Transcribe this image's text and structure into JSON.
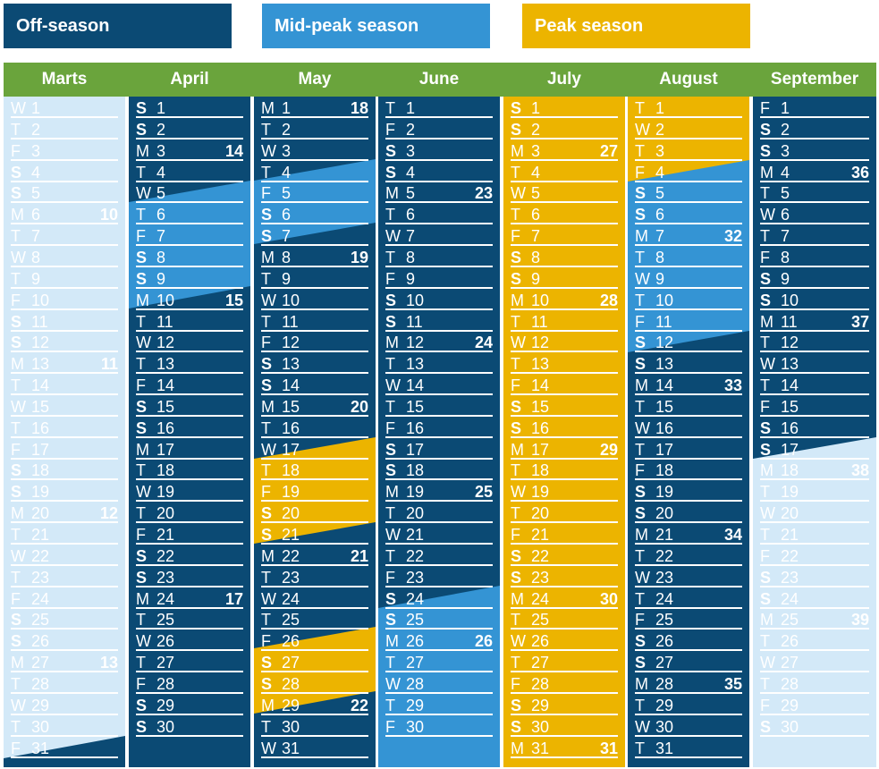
{
  "colors": {
    "off": "#0b4a74",
    "offLight": "#d3e9f8",
    "mid": "#3494d4",
    "peak": "#ecb400",
    "header": "#6aa43c",
    "text": "#ffffff"
  },
  "legend": {
    "off": "Off-season",
    "mid": "Mid-peak season",
    "peak": "Peak season"
  },
  "months": [
    {
      "name": "Marts",
      "days": [
        {
          "d": "W",
          "n": "1"
        },
        {
          "d": "T",
          "n": "2"
        },
        {
          "d": "F",
          "n": "3"
        },
        {
          "d": "S",
          "n": "4"
        },
        {
          "d": "S",
          "n": "5"
        },
        {
          "d": "M",
          "n": "6",
          "w": "10"
        },
        {
          "d": "T",
          "n": "7"
        },
        {
          "d": "W",
          "n": "8"
        },
        {
          "d": "T",
          "n": "9"
        },
        {
          "d": "F",
          "n": "10"
        },
        {
          "d": "S",
          "n": "11"
        },
        {
          "d": "S",
          "n": "12"
        },
        {
          "d": "M",
          "n": "13",
          "w": "11"
        },
        {
          "d": "T",
          "n": "14"
        },
        {
          "d": "W",
          "n": "15"
        },
        {
          "d": "T",
          "n": "16"
        },
        {
          "d": "F",
          "n": "17"
        },
        {
          "d": "S",
          "n": "18"
        },
        {
          "d": "S",
          "n": "19"
        },
        {
          "d": "M",
          "n": "20",
          "w": "12"
        },
        {
          "d": "T",
          "n": "21"
        },
        {
          "d": "W",
          "n": "22"
        },
        {
          "d": "T",
          "n": "23"
        },
        {
          "d": "F",
          "n": "24"
        },
        {
          "d": "S",
          "n": "25"
        },
        {
          "d": "S",
          "n": "26"
        },
        {
          "d": "M",
          "n": "27",
          "w": "13"
        },
        {
          "d": "T",
          "n": "28"
        },
        {
          "d": "W",
          "n": "29"
        },
        {
          "d": "T",
          "n": "30"
        },
        {
          "d": "F",
          "n": "31"
        }
      ]
    },
    {
      "name": "April",
      "days": [
        {
          "d": "S",
          "n": "1"
        },
        {
          "d": "S",
          "n": "2"
        },
        {
          "d": "M",
          "n": "3",
          "w": "14"
        },
        {
          "d": "T",
          "n": "4"
        },
        {
          "d": "W",
          "n": "5"
        },
        {
          "d": "T",
          "n": "6"
        },
        {
          "d": "F",
          "n": "7"
        },
        {
          "d": "S",
          "n": "8"
        },
        {
          "d": "S",
          "n": "9"
        },
        {
          "d": "M",
          "n": "10",
          "w": "15"
        },
        {
          "d": "T",
          "n": "11"
        },
        {
          "d": "W",
          "n": "12"
        },
        {
          "d": "T",
          "n": "13"
        },
        {
          "d": "F",
          "n": "14"
        },
        {
          "d": "S",
          "n": "15"
        },
        {
          "d": "S",
          "n": "16"
        },
        {
          "d": "M",
          "n": "17"
        },
        {
          "d": "T",
          "n": "18"
        },
        {
          "d": "W",
          "n": "19"
        },
        {
          "d": "T",
          "n": "20"
        },
        {
          "d": "F",
          "n": "21"
        },
        {
          "d": "S",
          "n": "22"
        },
        {
          "d": "S",
          "n": "23"
        },
        {
          "d": "M",
          "n": "24",
          "w": "17"
        },
        {
          "d": "T",
          "n": "25"
        },
        {
          "d": "W",
          "n": "26"
        },
        {
          "d": "T",
          "n": "27"
        },
        {
          "d": "F",
          "n": "28"
        },
        {
          "d": "S",
          "n": "29"
        },
        {
          "d": "S",
          "n": "30"
        }
      ]
    },
    {
      "name": "May",
      "days": [
        {
          "d": "M",
          "n": "1",
          "w": "18"
        },
        {
          "d": "T",
          "n": "2"
        },
        {
          "d": "W",
          "n": "3"
        },
        {
          "d": "T",
          "n": "4"
        },
        {
          "d": "F",
          "n": "5"
        },
        {
          "d": "S",
          "n": "6"
        },
        {
          "d": "S",
          "n": "7"
        },
        {
          "d": "M",
          "n": "8",
          "w": "19"
        },
        {
          "d": "T",
          "n": "9"
        },
        {
          "d": "W",
          "n": "10"
        },
        {
          "d": "T",
          "n": "11"
        },
        {
          "d": "F",
          "n": "12"
        },
        {
          "d": "S",
          "n": "13"
        },
        {
          "d": "S",
          "n": "14"
        },
        {
          "d": "M",
          "n": "15",
          "w": "20"
        },
        {
          "d": "T",
          "n": "16"
        },
        {
          "d": "W",
          "n": "17"
        },
        {
          "d": "T",
          "n": "18"
        },
        {
          "d": "F",
          "n": "19"
        },
        {
          "d": "S",
          "n": "20"
        },
        {
          "d": "S",
          "n": "21"
        },
        {
          "d": "M",
          "n": "22",
          "w": "21"
        },
        {
          "d": "T",
          "n": "23"
        },
        {
          "d": "W",
          "n": "24"
        },
        {
          "d": "T",
          "n": "25"
        },
        {
          "d": "F",
          "n": "26"
        },
        {
          "d": "S",
          "n": "27"
        },
        {
          "d": "S",
          "n": "28"
        },
        {
          "d": "M",
          "n": "29",
          "w": "22"
        },
        {
          "d": "T",
          "n": "30"
        },
        {
          "d": "W",
          "n": "31"
        }
      ]
    },
    {
      "name": "June",
      "days": [
        {
          "d": "T",
          "n": "1"
        },
        {
          "d": "F",
          "n": "2"
        },
        {
          "d": "S",
          "n": "3"
        },
        {
          "d": "S",
          "n": "4"
        },
        {
          "d": "M",
          "n": "5",
          "w": "23"
        },
        {
          "d": "T",
          "n": "6"
        },
        {
          "d": "W",
          "n": "7"
        },
        {
          "d": "T",
          "n": "8"
        },
        {
          "d": "F",
          "n": "9"
        },
        {
          "d": "S",
          "n": "10"
        },
        {
          "d": "S",
          "n": "11"
        },
        {
          "d": "M",
          "n": "12",
          "w": "24"
        },
        {
          "d": "T",
          "n": "13"
        },
        {
          "d": "W",
          "n": "14"
        },
        {
          "d": "T",
          "n": "15"
        },
        {
          "d": "F",
          "n": "16"
        },
        {
          "d": "S",
          "n": "17"
        },
        {
          "d": "S",
          "n": "18"
        },
        {
          "d": "M",
          "n": "19",
          "w": "25"
        },
        {
          "d": "T",
          "n": "20"
        },
        {
          "d": "W",
          "n": "21"
        },
        {
          "d": "T",
          "n": "22"
        },
        {
          "d": "F",
          "n": "23"
        },
        {
          "d": "S",
          "n": "24"
        },
        {
          "d": "S",
          "n": "25"
        },
        {
          "d": "M",
          "n": "26",
          "w": "26"
        },
        {
          "d": "T",
          "n": "27"
        },
        {
          "d": "W",
          "n": "28"
        },
        {
          "d": "T",
          "n": "29"
        },
        {
          "d": "F",
          "n": "30"
        }
      ]
    },
    {
      "name": "July",
      "days": [
        {
          "d": "S",
          "n": "1"
        },
        {
          "d": "S",
          "n": "2"
        },
        {
          "d": "M",
          "n": "3",
          "w": "27"
        },
        {
          "d": "T",
          "n": "4"
        },
        {
          "d": "W",
          "n": "5"
        },
        {
          "d": "T",
          "n": "6"
        },
        {
          "d": "F",
          "n": "7"
        },
        {
          "d": "S",
          "n": "8"
        },
        {
          "d": "S",
          "n": "9"
        },
        {
          "d": "M",
          "n": "10",
          "w": "28"
        },
        {
          "d": "T",
          "n": "11"
        },
        {
          "d": "W",
          "n": "12"
        },
        {
          "d": "T",
          "n": "13"
        },
        {
          "d": "F",
          "n": "14"
        },
        {
          "d": "S",
          "n": "15"
        },
        {
          "d": "S",
          "n": "16"
        },
        {
          "d": "M",
          "n": "17",
          "w": "29"
        },
        {
          "d": "T",
          "n": "18"
        },
        {
          "d": "W",
          "n": "19"
        },
        {
          "d": "T",
          "n": "20"
        },
        {
          "d": "F",
          "n": "21"
        },
        {
          "d": "S",
          "n": "22"
        },
        {
          "d": "S",
          "n": "23"
        },
        {
          "d": "M",
          "n": "24",
          "w": "30"
        },
        {
          "d": "T",
          "n": "25"
        },
        {
          "d": "W",
          "n": "26"
        },
        {
          "d": "T",
          "n": "27"
        },
        {
          "d": "F",
          "n": "28"
        },
        {
          "d": "S",
          "n": "29"
        },
        {
          "d": "S",
          "n": "30"
        },
        {
          "d": "M",
          "n": "31",
          "w": "31"
        }
      ]
    },
    {
      "name": "August",
      "days": [
        {
          "d": "T",
          "n": "1"
        },
        {
          "d": "W",
          "n": "2"
        },
        {
          "d": "T",
          "n": "3"
        },
        {
          "d": "F",
          "n": "4"
        },
        {
          "d": "S",
          "n": "5"
        },
        {
          "d": "S",
          "n": "6"
        },
        {
          "d": "M",
          "n": "7",
          "w": "32"
        },
        {
          "d": "T",
          "n": "8"
        },
        {
          "d": "W",
          "n": "9"
        },
        {
          "d": "T",
          "n": "10"
        },
        {
          "d": "F",
          "n": "11"
        },
        {
          "d": "S",
          "n": "12"
        },
        {
          "d": "S",
          "n": "13"
        },
        {
          "d": "M",
          "n": "14",
          "w": "33"
        },
        {
          "d": "T",
          "n": "15"
        },
        {
          "d": "W",
          "n": "16"
        },
        {
          "d": "T",
          "n": "17"
        },
        {
          "d": "F",
          "n": "18"
        },
        {
          "d": "S",
          "n": "19"
        },
        {
          "d": "S",
          "n": "20"
        },
        {
          "d": "M",
          "n": "21",
          "w": "34"
        },
        {
          "d": "T",
          "n": "22"
        },
        {
          "d": "W",
          "n": "23"
        },
        {
          "d": "T",
          "n": "24"
        },
        {
          "d": "F",
          "n": "25"
        },
        {
          "d": "S",
          "n": "26"
        },
        {
          "d": "S",
          "n": "27"
        },
        {
          "d": "M",
          "n": "28",
          "w": "35"
        },
        {
          "d": "T",
          "n": "29"
        },
        {
          "d": "W",
          "n": "30"
        },
        {
          "d": "T",
          "n": "31"
        }
      ]
    },
    {
      "name": "September",
      "days": [
        {
          "d": "F",
          "n": "1"
        },
        {
          "d": "S",
          "n": "2"
        },
        {
          "d": "S",
          "n": "3"
        },
        {
          "d": "M",
          "n": "4",
          "w": "36"
        },
        {
          "d": "T",
          "n": "5"
        },
        {
          "d": "W",
          "n": "6"
        },
        {
          "d": "T",
          "n": "7"
        },
        {
          "d": "F",
          "n": "8"
        },
        {
          "d": "S",
          "n": "9"
        },
        {
          "d": "S",
          "n": "10"
        },
        {
          "d": "M",
          "n": "11",
          "w": "37"
        },
        {
          "d": "T",
          "n": "12"
        },
        {
          "d": "W",
          "n": "13"
        },
        {
          "d": "T",
          "n": "14"
        },
        {
          "d": "F",
          "n": "15"
        },
        {
          "d": "S",
          "n": "16"
        },
        {
          "d": "S",
          "n": "17"
        },
        {
          "d": "M",
          "n": "18",
          "w": "38"
        },
        {
          "d": "T",
          "n": "19"
        },
        {
          "d": "W",
          "n": "20"
        },
        {
          "d": "T",
          "n": "21"
        },
        {
          "d": "F",
          "n": "22"
        },
        {
          "d": "S",
          "n": "23"
        },
        {
          "d": "S",
          "n": "24"
        },
        {
          "d": "M",
          "n": "25",
          "w": "39"
        },
        {
          "d": "T",
          "n": "26"
        },
        {
          "d": "W",
          "n": "27"
        },
        {
          "d": "T",
          "n": "28"
        },
        {
          "d": "F",
          "n": "29"
        },
        {
          "d": "S",
          "n": "30"
        }
      ]
    }
  ]
}
